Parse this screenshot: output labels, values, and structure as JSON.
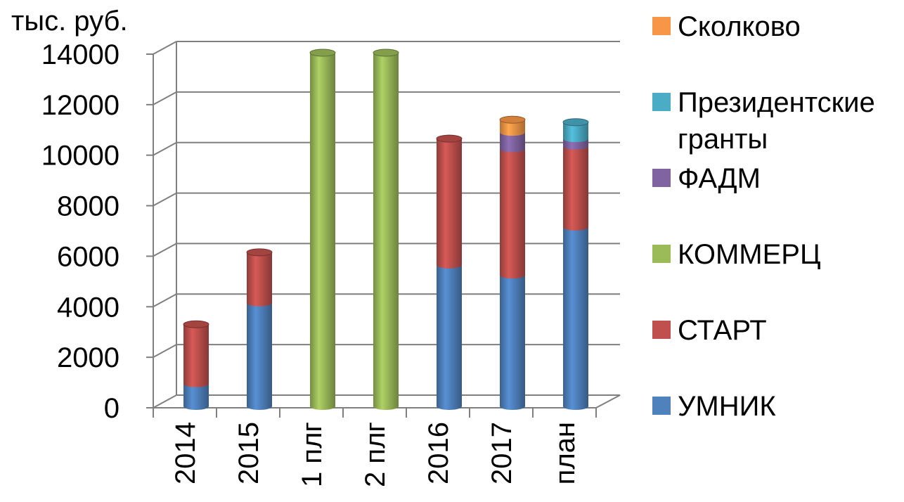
{
  "chart_data": {
    "type": "bar",
    "stacked": true,
    "three_d": true,
    "unit_label": "тыс. руб.",
    "ylim": [
      0,
      14000
    ],
    "yticks": [
      "0",
      "2000",
      "4000",
      "6000",
      "8000",
      "10000",
      "12000",
      "14000"
    ],
    "categories": [
      "2014",
      "2015",
      "1 плг",
      "2 плг",
      "2016",
      "2017",
      "план"
    ],
    "grid": true,
    "legend_position": "right",
    "series": [
      {
        "name": "УМНИК",
        "color": "#4F81BD",
        "values": [
          900,
          4100,
          0,
          0,
          5600,
          5200,
          7100
        ]
      },
      {
        "name": "СТАРТ",
        "color": "#C0504D",
        "values": [
          2350,
          2000,
          0,
          0,
          5000,
          5000,
          3200
        ]
      },
      {
        "name": "КОММЕРЦ",
        "color": "#9BBB59",
        "values": [
          0,
          0,
          14000,
          14000,
          0,
          0,
          0
        ]
      },
      {
        "name": "ФАДМ",
        "color": "#8064A2",
        "values": [
          0,
          0,
          0,
          0,
          0,
          650,
          300
        ]
      },
      {
        "name": "Президентские гранты",
        "color": "#4BACC6",
        "values": [
          0,
          0,
          0,
          0,
          0,
          0,
          650
        ]
      },
      {
        "name": "Сколково",
        "color": "#F79646",
        "values": [
          0,
          0,
          0,
          0,
          0,
          500,
          0
        ]
      }
    ],
    "legend_order": [
      "Сколково",
      "Президентские гранты",
      "ФАДМ",
      "КОММЕРЦ",
      "СТАРТ",
      "УМНИК"
    ]
  }
}
